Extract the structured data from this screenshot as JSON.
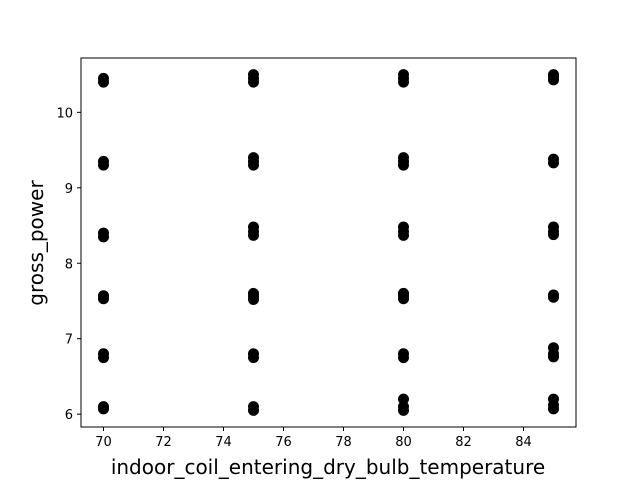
{
  "chart_data": {
    "type": "scatter",
    "xlabel": "indoor_coil_entering_dry_bulb_temperature",
    "ylabel": "gross_power",
    "xlim": [
      69.25,
      85.75
    ],
    "ylim": [
      5.83,
      10.72
    ],
    "xticks": [
      70,
      72,
      74,
      76,
      78,
      80,
      82,
      84
    ],
    "yticks": [
      6,
      7,
      8,
      9,
      10
    ],
    "series": [
      {
        "color": "#000000",
        "x": [
          70,
          70,
          70,
          70,
          70,
          70,
          70,
          70,
          70,
          70,
          70,
          70,
          75,
          75,
          75,
          75,
          75,
          75,
          75,
          75,
          75,
          75,
          75,
          75,
          75,
          75,
          75,
          75,
          80,
          80,
          80,
          80,
          80,
          80,
          80,
          80,
          80,
          80,
          80,
          80,
          80,
          80,
          80,
          80,
          80,
          85,
          85,
          85,
          85,
          85,
          85,
          85,
          85,
          85,
          85,
          85,
          85,
          85,
          85,
          85,
          85
        ],
        "values": [
          10.4,
          10.45,
          9.3,
          9.35,
          8.35,
          8.4,
          7.53,
          7.57,
          6.75,
          6.8,
          6.07,
          6.1,
          10.4,
          10.45,
          10.5,
          9.3,
          9.35,
          9.4,
          8.37,
          8.42,
          8.48,
          7.52,
          7.56,
          7.6,
          6.75,
          6.8,
          6.05,
          6.1,
          10.4,
          10.45,
          10.5,
          9.3,
          9.35,
          9.4,
          8.37,
          8.42,
          8.48,
          7.53,
          7.57,
          7.6,
          6.75,
          6.8,
          6.05,
          6.1,
          6.2,
          10.43,
          10.47,
          10.5,
          9.33,
          9.38,
          8.38,
          8.42,
          8.48,
          7.55,
          7.58,
          6.76,
          6.8,
          6.88,
          6.07,
          6.12,
          6.2
        ]
      }
    ]
  }
}
